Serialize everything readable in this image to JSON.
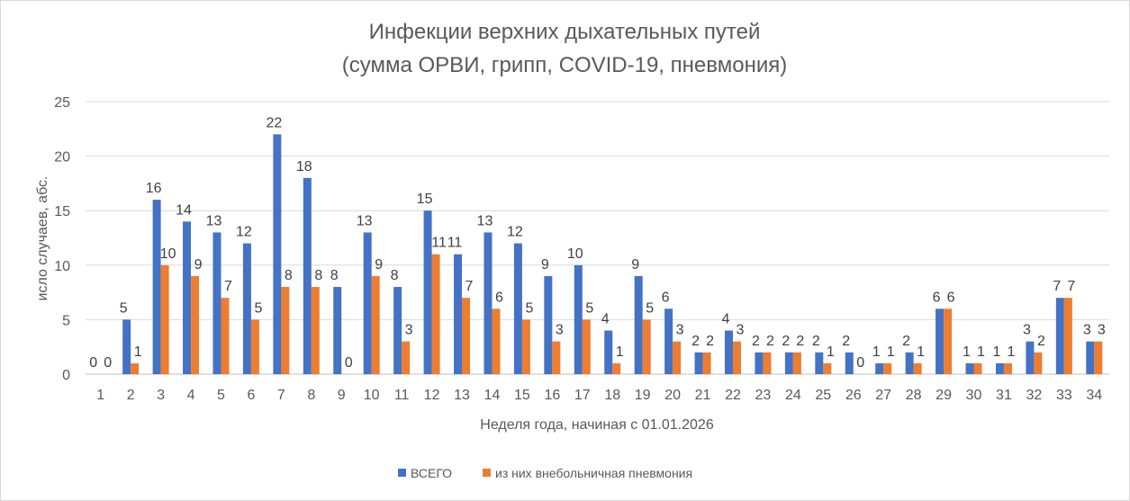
{
  "chart_data": {
    "type": "bar",
    "title": "Инфекции верхних дыхательных путей",
    "subtitle": "(сумма ОРВИ, грипп, COVID-19, пневмония)",
    "xlabel": "Неделя года, начиная с 01.01.2026",
    "ylabel": "исло случаев, абс.",
    "ylim": [
      0,
      25
    ],
    "yticks": [
      "0",
      "5",
      "10",
      "15",
      "20",
      "25"
    ],
    "grid": true,
    "legend_position": "bottom",
    "categories": [
      "1",
      "2",
      "3",
      "4",
      "5",
      "6",
      "7",
      "8",
      "9",
      "10",
      "11",
      "12",
      "13",
      "14",
      "15",
      "16",
      "17",
      "18",
      "19",
      "20",
      "21",
      "22",
      "23",
      "24",
      "25",
      "26",
      "27",
      "28",
      "29",
      "30",
      "31",
      "32",
      "33",
      "34"
    ],
    "series": [
      {
        "name": "ВСЕГО",
        "color": "#4472c4",
        "values": [
          0,
          5,
          16,
          14,
          13,
          12,
          22,
          18,
          8,
          13,
          8,
          15,
          11,
          13,
          12,
          9,
          10,
          4,
          9,
          6,
          2,
          4,
          2,
          2,
          2,
          2,
          1,
          2,
          6,
          1,
          1,
          3,
          7,
          3
        ]
      },
      {
        "name": "из них внебольничная пневмония",
        "color": "#ed7d31",
        "values": [
          0,
          1,
          10,
          9,
          7,
          5,
          8,
          8,
          0,
          9,
          3,
          11,
          7,
          6,
          5,
          3,
          5,
          1,
          5,
          3,
          2,
          3,
          2,
          2,
          1,
          0,
          1,
          1,
          6,
          1,
          1,
          2,
          7,
          3
        ]
      }
    ]
  }
}
